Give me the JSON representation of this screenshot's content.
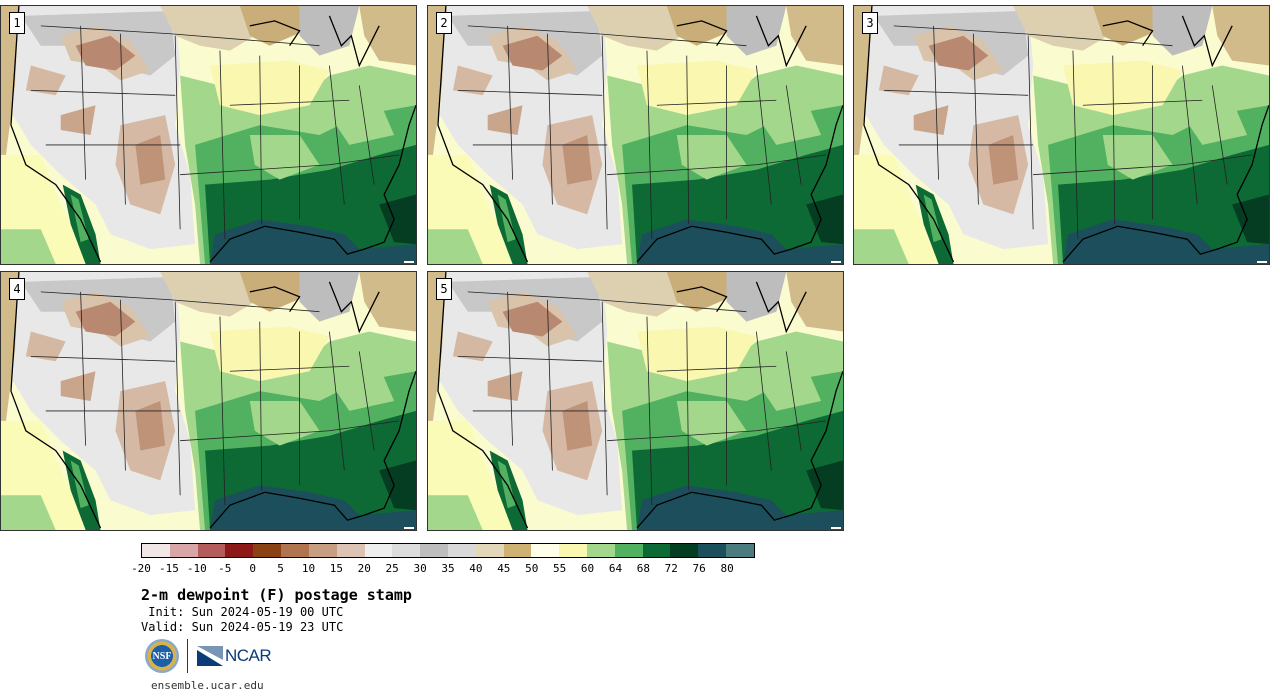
{
  "panels": [
    {
      "label": "1"
    },
    {
      "label": "2"
    },
    {
      "label": "3"
    },
    {
      "label": "4"
    },
    {
      "label": "5"
    }
  ],
  "colorbar": {
    "colors": [
      "#f2e7e7",
      "#d8a6a6",
      "#b45c5c",
      "#8c1818",
      "#8a4214",
      "#b07450",
      "#c79e82",
      "#dcc3b4",
      "#eeeeee",
      "#dddddd",
      "#bdbdbd",
      "#d9d9d9",
      "#e2d7b8",
      "#cdb273",
      "#ffffe9",
      "#f9f7b0",
      "#a3d88c",
      "#52b160",
      "#0d6a34",
      "#043d22",
      "#1c4f5b",
      "#4c7b7f"
    ],
    "labels": [
      "-20",
      "-15",
      "-10",
      "-5",
      "0",
      "5",
      "10",
      "15",
      "20",
      "25",
      "30",
      "35",
      "40",
      "45",
      "50",
      "55",
      "60",
      "64",
      "68",
      "72",
      "76",
      "80"
    ]
  },
  "title": "2-m dewpoint (F) postage stamp",
  "init": " Init: Sun 2024-05-19 00 UTC",
  "valid": "Valid: Sun 2024-05-19 23 UTC",
  "logos": {
    "nsf": "NSF",
    "ncar": "NCAR"
  },
  "website": "ensemble.ucar.edu"
}
